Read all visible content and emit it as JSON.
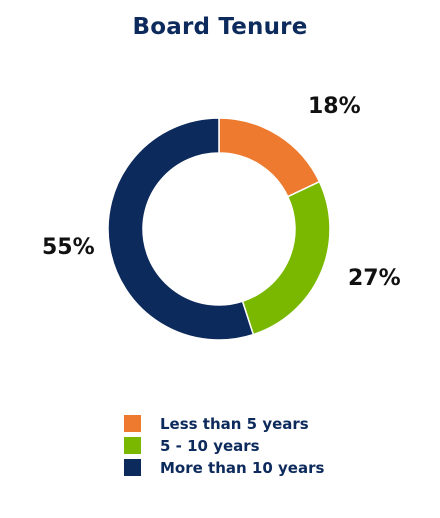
{
  "chart_data": {
    "type": "pie",
    "title": "Board Tenure",
    "categories": [
      "Less than 5 years",
      "5 - 10 years",
      "More than 10 years"
    ],
    "values": [
      18,
      27,
      55
    ],
    "value_labels": [
      "18%",
      "27%",
      "55%"
    ],
    "colors": [
      "#ed7a2e",
      "#7ab800",
      "#0d2a5c"
    ],
    "style": "donut",
    "legend_position": "bottom"
  }
}
